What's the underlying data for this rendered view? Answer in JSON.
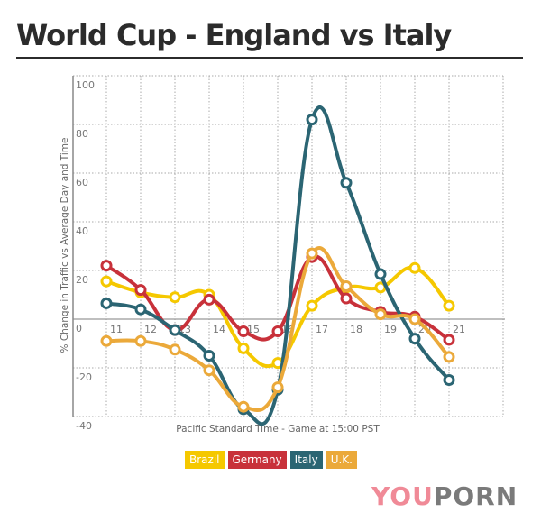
{
  "header": {
    "title": "World Cup - England vs Italy"
  },
  "legend": [
    {
      "label": "Brazil",
      "color": "#f5c800"
    },
    {
      "label": "Germany",
      "color": "#c8313a"
    },
    {
      "label": "Italy",
      "color": "#2b6573"
    },
    {
      "label": "U.K.",
      "color": "#eba93a"
    }
  ],
  "logo": {
    "part1": "YOU",
    "part2": "PORN"
  },
  "chart_data": {
    "type": "line",
    "title": "World Cup - England vs Italy",
    "xlabel": "Pacific Standard Time - Game at 15:00 PST",
    "ylabel": "% Change in Traffic vs Average Day and Time",
    "x": [
      11,
      12,
      13,
      14,
      15,
      16,
      17,
      18,
      19,
      20,
      21
    ],
    "x_tick_labels": [
      "11",
      "12",
      "13",
      "14",
      "15",
      "16",
      "17",
      "18",
      "19",
      "20",
      "21"
    ],
    "y_tick_labels": [
      "100",
      "80",
      "60",
      "40",
      "20",
      "0",
      "-20",
      "-40"
    ],
    "ylim": [
      -40,
      100
    ],
    "grid": true,
    "legend_position": "bottom",
    "series": [
      {
        "name": "Brazil",
        "color": "#f5c800",
        "values": [
          15.5,
          11,
          9,
          10,
          -12,
          -18,
          5.5,
          13,
          13,
          21,
          5.5
        ]
      },
      {
        "name": "Germany",
        "color": "#c8313a",
        "values": [
          22,
          12,
          -4.5,
          8,
          -5,
          -5,
          25.5,
          8.5,
          3,
          1,
          -8.5
        ]
      },
      {
        "name": "Italy",
        "color": "#2b6573",
        "values": [
          6.5,
          4,
          -4.5,
          -15,
          -37,
          -29,
          82,
          56,
          18.5,
          -8,
          -25
        ]
      },
      {
        "name": "U.K.",
        "color": "#eba93a",
        "values": [
          -9,
          -9,
          -12.5,
          -21,
          -36,
          -28,
          27,
          13.5,
          2,
          0,
          -15.5
        ]
      }
    ]
  }
}
